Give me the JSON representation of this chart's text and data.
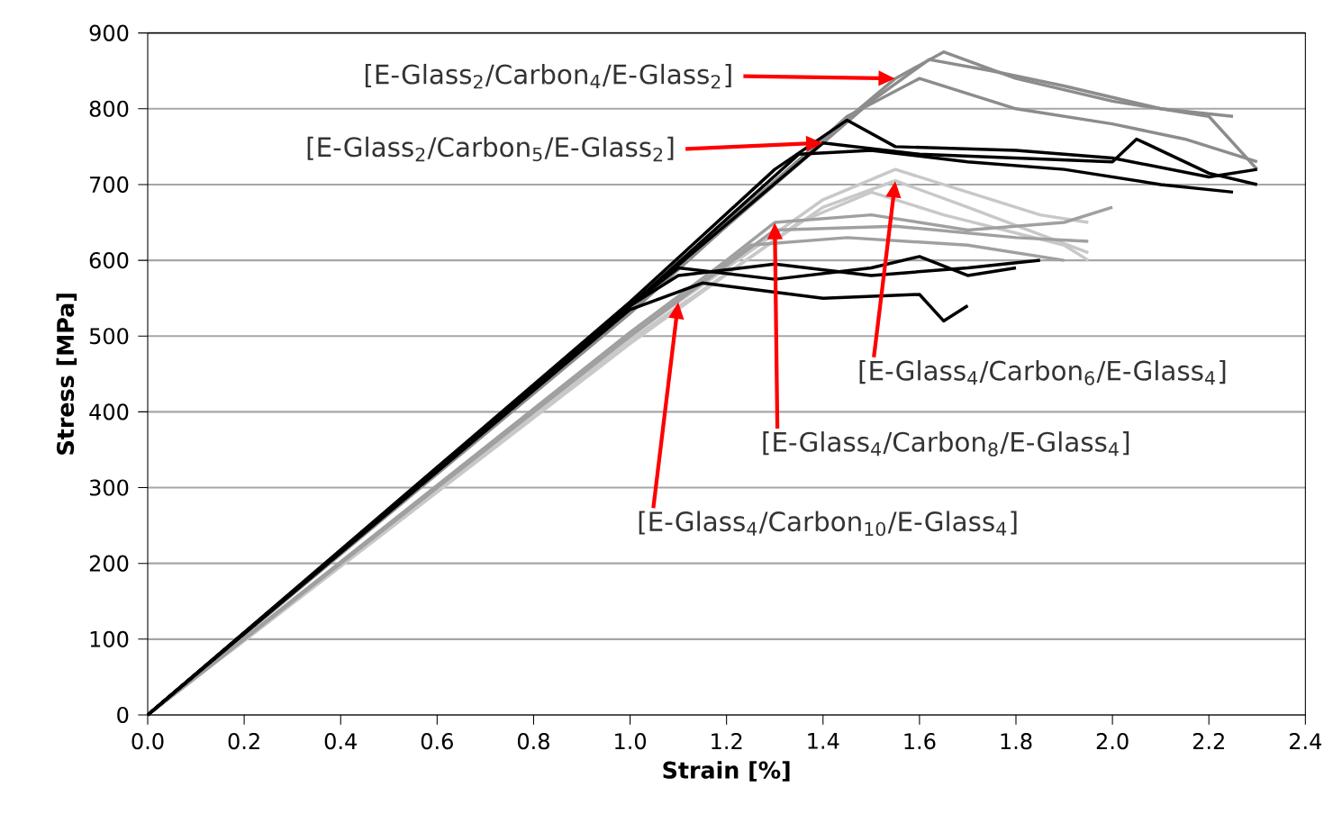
{
  "chart_data": {
    "type": "line",
    "xlabel": "Strain [%]",
    "ylabel": "Stress [MPa]",
    "xlim": [
      0,
      2.4
    ],
    "ylim": [
      0,
      900
    ],
    "xticks": [
      {
        "value": 0,
        "label": "0.0"
      },
      {
        "value": 0.2,
        "label": "0.2"
      },
      {
        "value": 0.4,
        "label": "0.4"
      },
      {
        "value": 0.6,
        "label": "0.6"
      },
      {
        "value": 0.8,
        "label": "0.8"
      },
      {
        "value": 1.0,
        "label": "1.0"
      },
      {
        "value": 1.2,
        "label": "1.2"
      },
      {
        "value": 1.4,
        "label": "1.4"
      },
      {
        "value": 1.6,
        "label": "1.6"
      },
      {
        "value": 1.8,
        "label": "1.8"
      },
      {
        "value": 2.0,
        "label": "2.0"
      },
      {
        "value": 2.2,
        "label": "2.2"
      },
      {
        "value": 2.4,
        "label": "2.4"
      }
    ],
    "yticks": [
      0,
      100,
      200,
      300,
      400,
      500,
      600,
      700,
      800,
      900
    ],
    "grid": "y",
    "marker": "none",
    "line_style": "solid",
    "series": [
      {
        "color": "#8c8c8c",
        "x": [
          0,
          0.5,
          1.0,
          1.4,
          1.55,
          1.65,
          1.8,
          2.0,
          2.2,
          2.3
        ],
        "values": [
          0,
          270,
          540,
          760,
          840,
          875,
          840,
          810,
          790,
          720
        ]
      },
      {
        "color": "#8c8c8c",
        "x": [
          0,
          1.0,
          1.5,
          1.62,
          1.75,
          1.9,
          2.1,
          2.25
        ],
        "values": [
          0,
          535,
          810,
          865,
          850,
          830,
          800,
          790
        ]
      },
      {
        "color": "#8c8c8c",
        "x": [
          0,
          1.0,
          1.45,
          1.6,
          1.8,
          2.0,
          2.15,
          2.3
        ],
        "values": [
          0,
          530,
          790,
          840,
          800,
          780,
          760,
          730
        ]
      },
      {
        "color": "#c8c8c8",
        "x": [
          0,
          1.0,
          1.4,
          1.55,
          1.7,
          1.85,
          1.95
        ],
        "values": [
          0,
          500,
          680,
          720,
          690,
          660,
          650
        ]
      },
      {
        "color": "#c8c8c8",
        "x": [
          0,
          1.0,
          1.4,
          1.55,
          1.7,
          1.95
        ],
        "values": [
          0,
          495,
          670,
          705,
          670,
          610
        ]
      },
      {
        "color": "#c8c8c8",
        "x": [
          0,
          1.0,
          1.35,
          1.5,
          1.65,
          1.9,
          1.95
        ],
        "values": [
          0,
          490,
          650,
          690,
          660,
          620,
          600
        ]
      },
      {
        "color": "#a0a0a0",
        "x": [
          0,
          1.0,
          1.2,
          1.3,
          1.5,
          1.7,
          1.9,
          2.0
        ],
        "values": [
          0,
          505,
          600,
          650,
          660,
          640,
          650,
          670
        ]
      },
      {
        "color": "#a0a0a0",
        "x": [
          0,
          1.0,
          1.25,
          1.45,
          1.7,
          1.9
        ],
        "values": [
          0,
          500,
          620,
          630,
          620,
          600
        ]
      },
      {
        "color": "#a0a0a0",
        "x": [
          0,
          1.0,
          1.3,
          1.55,
          1.8,
          1.95
        ],
        "values": [
          0,
          500,
          640,
          645,
          630,
          625
        ]
      },
      {
        "color": "#000000",
        "x": [
          0,
          1.0,
          1.3,
          1.45,
          1.55,
          1.8,
          2.0,
          2.2,
          2.3
        ],
        "values": [
          0,
          545,
          720,
          785,
          750,
          745,
          735,
          710,
          720
        ]
      },
      {
        "color": "#000000",
        "x": [
          0,
          1.0,
          1.35,
          1.5,
          1.7,
          1.9,
          2.1,
          2.25
        ],
        "values": [
          0,
          540,
          740,
          745,
          730,
          720,
          700,
          690
        ]
      },
      {
        "color": "#000000",
        "x": [
          0,
          1.0,
          1.4,
          1.6,
          2.0,
          2.05,
          2.2,
          2.3
        ],
        "values": [
          0,
          540,
          755,
          740,
          730,
          760,
          715,
          700
        ]
      },
      {
        "color": "#000000",
        "x": [
          0,
          1.0,
          1.1,
          1.3,
          1.5,
          1.7,
          1.85
        ],
        "values": [
          0,
          540,
          580,
          595,
          580,
          590,
          600
        ]
      },
      {
        "color": "#000000",
        "x": [
          0,
          1.0,
          1.15,
          1.4,
          1.6,
          1.65,
          1.7
        ],
        "values": [
          0,
          535,
          570,
          550,
          555,
          520,
          540
        ]
      },
      {
        "color": "#000000",
        "x": [
          0,
          1.0,
          1.1,
          1.3,
          1.5,
          1.6,
          1.7,
          1.8
        ],
        "values": [
          0,
          540,
          590,
          575,
          590,
          605,
          580,
          590
        ]
      }
    ],
    "annotations": [
      {
        "text": "[E-Glass$_{2}$/Carbon$_{4}$/E-Glass$_{2}$]",
        "x": 1.55,
        "y": 840
      },
      {
        "text": "[E-Glass$_{2}$/Carbon$_{5}$/E-Glass$_{2}$]",
        "x": 1.4,
        "y": 755
      },
      {
        "text": "[E-Glass$_{4}$/Carbon$_{6}$/E-Glass$_{4}$]",
        "x": 1.55,
        "y": 705
      },
      {
        "text": "[E-Glass$_{4}$/Carbon$_{8}$/E-Glass$_{4}$]",
        "x": 1.3,
        "y": 650
      },
      {
        "text": "[E-Glass$_{4}$/Carbon$_{10}$/E-Glass$_{4}$]",
        "x": 1.1,
        "y": 545
      }
    ]
  }
}
